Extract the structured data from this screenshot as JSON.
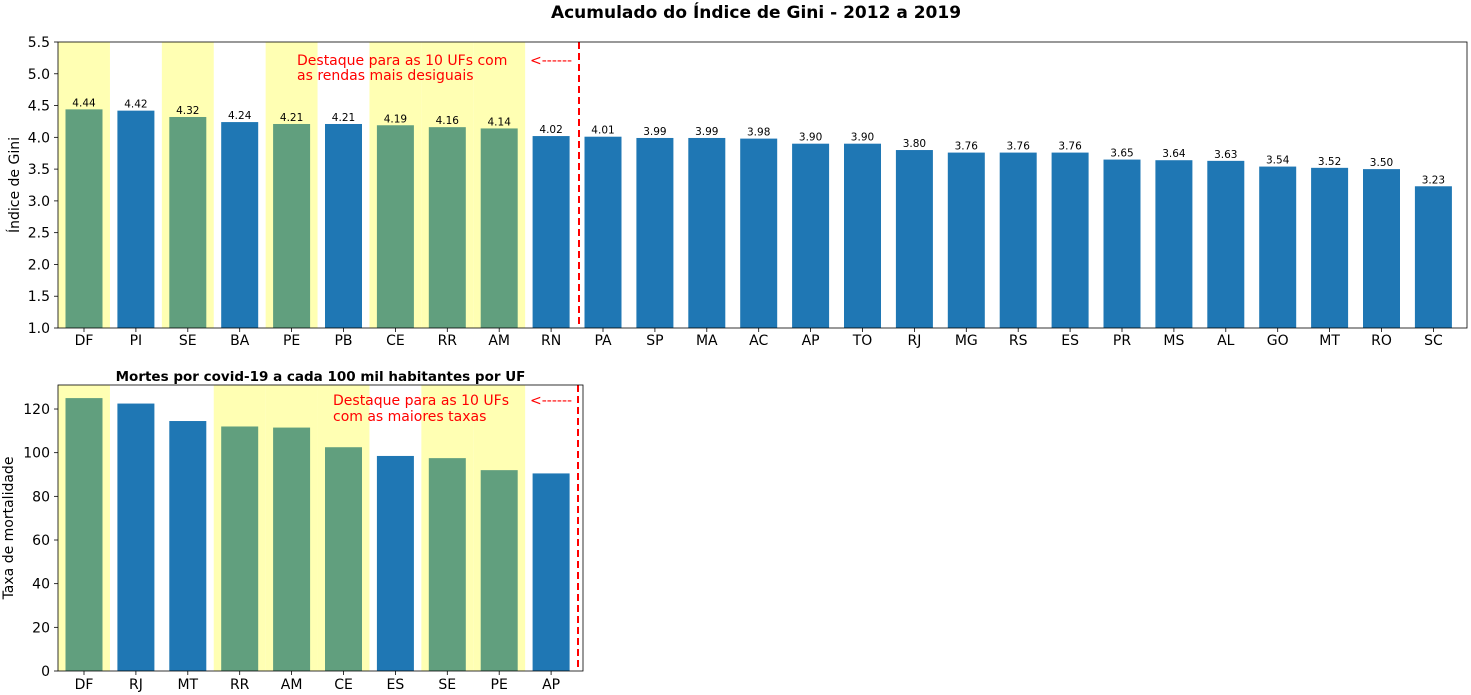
{
  "figure": {
    "title": "Acumulado do Índice de Gini - 2012 a 2019"
  },
  "colors": {
    "highlight_bar": "#619F7E",
    "normal_bar": "#1F77B4",
    "band": "#FFFFB3",
    "annotation": "#FF0000"
  },
  "chart_data": [
    {
      "type": "bar",
      "title": "",
      "xlabel": "",
      "ylabel": "Índice de Gini",
      "ylim": [
        1.0,
        5.5
      ],
      "yticks": [
        "1.0",
        "1.5",
        "2.0",
        "2.5",
        "3.0",
        "3.5",
        "4.0",
        "4.5",
        "5.0",
        "5.5"
      ],
      "ytick_values": [
        1.0,
        1.5,
        2.0,
        2.5,
        3.0,
        3.5,
        4.0,
        4.5,
        5.0,
        5.5
      ],
      "categories": [
        "DF",
        "PI",
        "SE",
        "BA",
        "PE",
        "PB",
        "CE",
        "RR",
        "AM",
        "RN",
        "PA",
        "SP",
        "MA",
        "AC",
        "AP",
        "TO",
        "RJ",
        "MG",
        "RS",
        "ES",
        "PR",
        "MS",
        "AL",
        "GO",
        "MT",
        "RO",
        "SC"
      ],
      "values": [
        4.44,
        4.42,
        4.32,
        4.24,
        4.21,
        4.21,
        4.19,
        4.16,
        4.14,
        4.02,
        4.01,
        3.99,
        3.99,
        3.98,
        3.9,
        3.9,
        3.8,
        3.76,
        3.76,
        3.76,
        3.65,
        3.64,
        3.63,
        3.54,
        3.52,
        3.5,
        3.23
      ],
      "value_labels": [
        "4.44",
        "4.42",
        "4.32",
        "4.24",
        "4.21",
        "4.21",
        "4.19",
        "4.16",
        "4.14",
        "4.02",
        "4.01",
        "3.99",
        "3.99",
        "3.98",
        "3.90",
        "3.90",
        "3.80",
        "3.76",
        "3.76",
        "3.76",
        "3.65",
        "3.64",
        "3.63",
        "3.54",
        "3.52",
        "3.50",
        "3.23"
      ],
      "highlighted": [
        "DF",
        "SE",
        "PE",
        "CE",
        "RR",
        "AM"
      ],
      "bands": [
        "DF",
        "SE",
        "PE",
        "CE",
        "RR",
        "AM"
      ],
      "cutoff_after": "RN",
      "annotation_lines": [
        "Destaque para as 10 UFs com",
        "as rendas mais desiguais"
      ],
      "arrow_text": "<------",
      "grid": false,
      "legend": "none"
    },
    {
      "type": "bar",
      "title": "Mortes por covid-19 a cada 100 mil habitantes por UF",
      "xlabel": "",
      "ylabel": "Taxa de mortalidade",
      "ylim": [
        0,
        131
      ],
      "yticks": [
        "0",
        "20",
        "40",
        "60",
        "80",
        "100",
        "120"
      ],
      "ytick_values": [
        0,
        20,
        40,
        60,
        80,
        100,
        120
      ],
      "categories": [
        "DF",
        "RJ",
        "MT",
        "RR",
        "AM",
        "CE",
        "ES",
        "SE",
        "PE",
        "AP"
      ],
      "values": [
        125.0,
        122.5,
        114.5,
        112.0,
        111.5,
        102.5,
        98.5,
        97.5,
        92.0,
        90.5
      ],
      "highlighted": [
        "DF",
        "RR",
        "AM",
        "CE",
        "SE",
        "PE"
      ],
      "bands": [
        "DF",
        "RR",
        "AM",
        "CE",
        "SE",
        "PE"
      ],
      "cutoff_after": "AP",
      "annotation_lines": [
        "Destaque para as 10 UFs",
        "com as maiores taxas"
      ],
      "arrow_text": "<------",
      "grid": false,
      "legend": "none"
    }
  ]
}
